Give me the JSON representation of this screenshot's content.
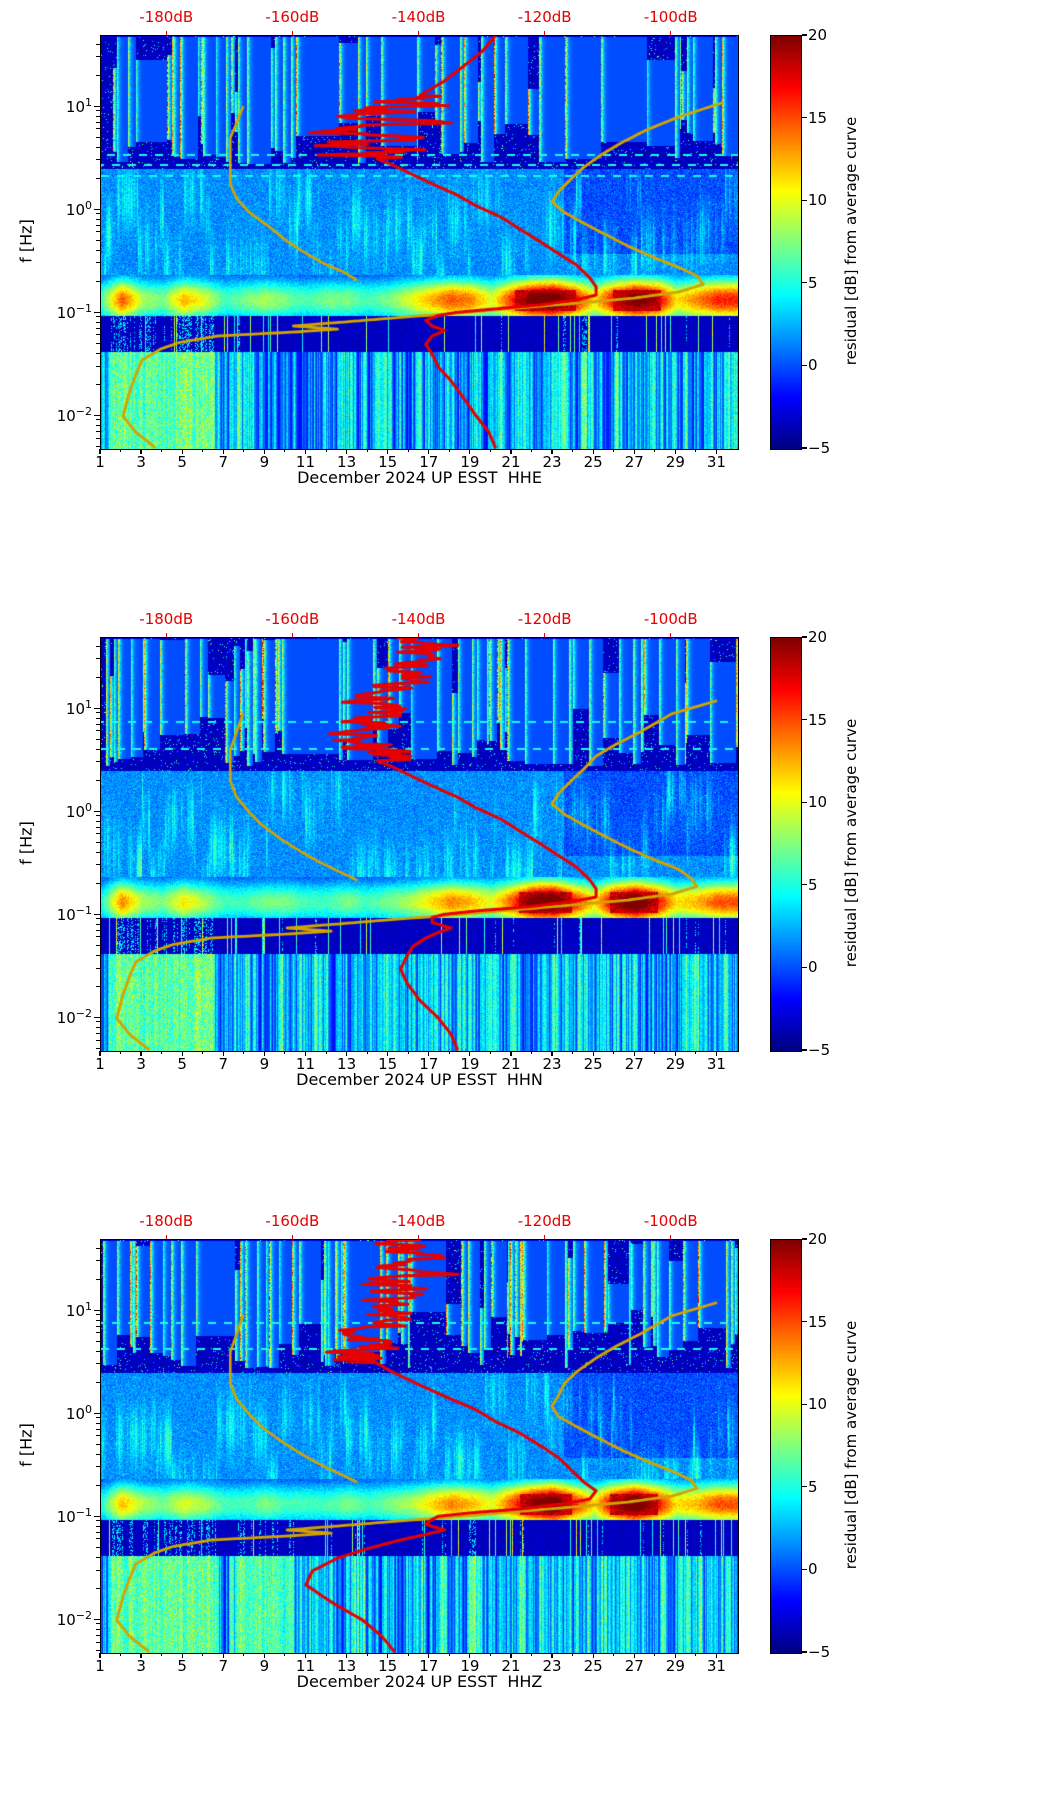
{
  "figure": {
    "background": "#ffffff",
    "y_axis": {
      "label": "f [Hz]",
      "tick_exponents": [
        1,
        0,
        -1,
        -2
      ],
      "range_hz": [
        0.0048,
        49
      ]
    },
    "x_axis": {
      "tick_labels": [
        1,
        3,
        5,
        7,
        9,
        11,
        13,
        15,
        17,
        19,
        21,
        23,
        25,
        27,
        29,
        31
      ],
      "range_days": [
        1,
        32
      ]
    },
    "db_axis": {
      "labels": [
        "-180dB",
        "-160dB",
        "-140dB",
        "-120dB",
        "-100dB"
      ],
      "values": [
        -180,
        -160,
        -140,
        -120,
        -100
      ],
      "range": [
        -190.5,
        -89.5
      ],
      "color": "#e60000"
    },
    "colorbar": {
      "label": "residual [dB] from average curve",
      "tick_values": [
        20,
        15,
        10,
        5,
        0,
        -5
      ],
      "min": -5,
      "max": 20,
      "colormap": "jet"
    },
    "curves": {
      "red_color": "#e60000",
      "yellow_color": "#d2a400"
    }
  },
  "chart_data": [
    {
      "type": "heatmap",
      "title": "December 2024 UP ESST  HHE",
      "channel": "HHE",
      "colormap": "jet",
      "x_range_days": [
        1,
        32
      ],
      "f_range_hz": [
        0.0048,
        49
      ],
      "value_range_db": [
        -5,
        20
      ],
      "seed": 13,
      "microseism_intensity_by_day": [
        6,
        13,
        8,
        7,
        11,
        9,
        6,
        7,
        8,
        7,
        6,
        7,
        7,
        6,
        7,
        9,
        11,
        13,
        12,
        9,
        14,
        18,
        19,
        15,
        10,
        15,
        18,
        16,
        10,
        12,
        14
      ],
      "low_boost_days": [
        [
          1.3,
          6.5
        ]
      ],
      "dashed_lines_hz": [
        2.2,
        2.8,
        3.5
      ],
      "red_jitter": {
        "f_range": [
          3.2,
          13
        ],
        "amp_db": 7
      },
      "red_curve_db_vs_hz": [
        [
          49,
          -128
        ],
        [
          35,
          -130
        ],
        [
          25,
          -133
        ],
        [
          18,
          -136
        ],
        [
          14,
          -139
        ],
        [
          11,
          -142
        ],
        [
          9,
          -144
        ],
        [
          7,
          -146
        ],
        [
          5.5,
          -148
        ],
        [
          4.5,
          -147
        ],
        [
          3.8,
          -149
        ],
        [
          3.2,
          -147
        ],
        [
          2.7,
          -144
        ],
        [
          2.2,
          -141
        ],
        [
          1.8,
          -138
        ],
        [
          1.4,
          -134
        ],
        [
          1.1,
          -131
        ],
        [
          0.85,
          -127
        ],
        [
          0.65,
          -124
        ],
        [
          0.5,
          -121
        ],
        [
          0.38,
          -118
        ],
        [
          0.29,
          -115
        ],
        [
          0.22,
          -113
        ],
        [
          0.18,
          -112
        ],
        [
          0.15,
          -112
        ],
        [
          0.135,
          -115
        ],
        [
          0.12,
          -121
        ],
        [
          0.11,
          -128
        ],
        [
          0.102,
          -134
        ],
        [
          0.095,
          -137
        ],
        [
          0.085,
          -139
        ],
        [
          0.075,
          -138
        ],
        [
          0.068,
          -136
        ],
        [
          0.06,
          -138
        ],
        [
          0.05,
          -139
        ],
        [
          0.04,
          -138
        ],
        [
          0.03,
          -137
        ],
        [
          0.022,
          -135
        ],
        [
          0.015,
          -133
        ],
        [
          0.01,
          -131
        ],
        [
          0.007,
          -129
        ],
        [
          0.005,
          -128
        ]
      ],
      "yellow_curve_db_vs_hz": [
        [
          11,
          -92
        ],
        [
          8,
          -99
        ],
        [
          6,
          -104
        ],
        [
          4.5,
          -108
        ],
        [
          3.5,
          -111
        ],
        [
          2.6,
          -114
        ],
        [
          2,
          -116
        ],
        [
          1.5,
          -118
        ],
        [
          1.2,
          -119
        ],
        [
          0.95,
          -117
        ],
        [
          0.75,
          -114
        ],
        [
          0.6,
          -111
        ],
        [
          0.45,
          -107
        ],
        [
          0.35,
          -103
        ],
        [
          0.28,
          -99
        ],
        [
          0.23,
          -96
        ],
        [
          0.19,
          -95
        ],
        [
          0.16,
          -99
        ],
        [
          0.14,
          -106
        ],
        [
          0.125,
          -115
        ],
        [
          0.11,
          -126
        ],
        [
          0.1,
          -134
        ],
        [
          0.09,
          -144
        ],
        [
          0.082,
          -152
        ],
        [
          0.075,
          -160
        ],
        [
          0.07,
          -153
        ],
        [
          0.066,
          -159
        ],
        [
          0.06,
          -172
        ],
        [
          0.052,
          -178
        ],
        [
          0.045,
          -181
        ],
        [
          0.035,
          -184
        ],
        [
          0.025,
          -185
        ],
        [
          0.017,
          -186
        ],
        [
          0.01,
          -187
        ],
        [
          0.007,
          -185
        ],
        [
          0.005,
          -182
        ]
      ],
      "yellow_secondary_curve_db_vs_hz": [
        [
          10,
          -168
        ],
        [
          7,
          -169
        ],
        [
          5,
          -170
        ],
        [
          3.5,
          -170
        ],
        [
          2.5,
          -170
        ],
        [
          1.8,
          -170
        ],
        [
          1.3,
          -169
        ],
        [
          0.95,
          -167
        ],
        [
          0.7,
          -164
        ],
        [
          0.5,
          -161
        ],
        [
          0.38,
          -158
        ],
        [
          0.3,
          -155
        ],
        [
          0.25,
          -152
        ],
        [
          0.21,
          -150
        ]
      ]
    },
    {
      "type": "heatmap",
      "title": "December 2024 UP ESST  HHN",
      "channel": "HHN",
      "colormap": "jet",
      "x_range_days": [
        1,
        32
      ],
      "f_range_hz": [
        0.0048,
        49
      ],
      "value_range_db": [
        -5,
        20
      ],
      "seed": 47,
      "microseism_intensity_by_day": [
        5,
        12,
        8,
        7,
        10,
        8,
        6,
        6,
        7,
        7,
        6,
        6,
        7,
        6,
        7,
        8,
        10,
        12,
        11,
        9,
        13,
        18,
        19,
        14,
        10,
        16,
        19,
        15,
        10,
        11,
        13
      ],
      "low_boost_days": [
        [
          1.3,
          6.5
        ]
      ],
      "dashed_lines_hz": [
        4.2,
        7.6
      ],
      "red_jitter": {
        "f_range": [
          3.2,
          49
        ],
        "amp_db": 5
      },
      "red_curve_db_vs_hz": [
        [
          49,
          -141
        ],
        [
          40,
          -140
        ],
        [
          30,
          -142
        ],
        [
          22,
          -141
        ],
        [
          16,
          -143
        ],
        [
          12,
          -144
        ],
        [
          9,
          -146
        ],
        [
          7,
          -147
        ],
        [
          5.5,
          -149
        ],
        [
          4.5,
          -148
        ],
        [
          3.8,
          -150
        ],
        [
          3.2,
          -147
        ],
        [
          2.7,
          -144
        ],
        [
          2.2,
          -141
        ],
        [
          1.8,
          -138
        ],
        [
          1.4,
          -134
        ],
        [
          1.1,
          -131
        ],
        [
          0.85,
          -127
        ],
        [
          0.65,
          -124
        ],
        [
          0.5,
          -121
        ],
        [
          0.38,
          -118
        ],
        [
          0.29,
          -115
        ],
        [
          0.22,
          -113
        ],
        [
          0.18,
          -112
        ],
        [
          0.15,
          -112
        ],
        [
          0.135,
          -116
        ],
        [
          0.12,
          -123
        ],
        [
          0.11,
          -131
        ],
        [
          0.102,
          -136
        ],
        [
          0.095,
          -138
        ],
        [
          0.085,
          -138
        ],
        [
          0.075,
          -135
        ],
        [
          0.068,
          -137
        ],
        [
          0.06,
          -139
        ],
        [
          0.05,
          -141
        ],
        [
          0.04,
          -142
        ],
        [
          0.03,
          -143
        ],
        [
          0.022,
          -142
        ],
        [
          0.015,
          -140
        ],
        [
          0.01,
          -137
        ],
        [
          0.007,
          -135
        ],
        [
          0.005,
          -134
        ]
      ],
      "yellow_curve_db_vs_hz": [
        [
          12,
          -93
        ],
        [
          9,
          -100
        ],
        [
          6,
          -105
        ],
        [
          4.5,
          -109
        ],
        [
          3.5,
          -112
        ],
        [
          2.6,
          -114
        ],
        [
          2,
          -116
        ],
        [
          1.5,
          -118
        ],
        [
          1.2,
          -119
        ],
        [
          0.95,
          -117
        ],
        [
          0.75,
          -114
        ],
        [
          0.6,
          -111
        ],
        [
          0.45,
          -107
        ],
        [
          0.35,
          -103
        ],
        [
          0.28,
          -99
        ],
        [
          0.23,
          -97
        ],
        [
          0.19,
          -96
        ],
        [
          0.16,
          -100
        ],
        [
          0.14,
          -107
        ],
        [
          0.125,
          -116
        ],
        [
          0.11,
          -127
        ],
        [
          0.1,
          -135
        ],
        [
          0.09,
          -145
        ],
        [
          0.082,
          -153
        ],
        [
          0.075,
          -161
        ],
        [
          0.07,
          -154
        ],
        [
          0.066,
          -160
        ],
        [
          0.06,
          -173
        ],
        [
          0.052,
          -179
        ],
        [
          0.045,
          -182
        ],
        [
          0.035,
          -185
        ],
        [
          0.025,
          -186
        ],
        [
          0.017,
          -187
        ],
        [
          0.01,
          -188
        ],
        [
          0.007,
          -186
        ],
        [
          0.005,
          -183
        ]
      ],
      "yellow_secondary_curve_db_vs_hz": [
        [
          9,
          -168
        ],
        [
          6,
          -169
        ],
        [
          4,
          -170
        ],
        [
          2.8,
          -170
        ],
        [
          2,
          -170
        ],
        [
          1.4,
          -169
        ],
        [
          1,
          -167
        ],
        [
          0.75,
          -165
        ],
        [
          0.55,
          -162
        ],
        [
          0.42,
          -159
        ],
        [
          0.33,
          -156
        ],
        [
          0.27,
          -153
        ],
        [
          0.22,
          -150
        ]
      ]
    },
    {
      "type": "heatmap",
      "title": "December 2024 UP ESST  HHZ",
      "channel": "HHZ",
      "colormap": "jet",
      "x_range_days": [
        1,
        32
      ],
      "f_range_hz": [
        0.0048,
        49
      ],
      "value_range_db": [
        -5,
        20
      ],
      "seed": 91,
      "microseism_intensity_by_day": [
        5,
        11,
        8,
        7,
        9,
        8,
        6,
        6,
        7,
        6,
        6,
        6,
        7,
        6,
        7,
        8,
        10,
        12,
        11,
        9,
        13,
        17,
        19,
        14,
        10,
        16,
        19,
        15,
        10,
        11,
        13
      ],
      "low_boost_days": [
        [
          1.3,
          6.5
        ],
        [
          7.5,
          10.2
        ]
      ],
      "dashed_lines_hz": [
        4.4,
        7.8
      ],
      "red_jitter": {
        "f_range": [
          3.2,
          49
        ],
        "amp_db": 5
      },
      "red_curve_db_vs_hz": [
        [
          49,
          -140
        ],
        [
          40,
          -140
        ],
        [
          30,
          -141
        ],
        [
          22,
          -141
        ],
        [
          16,
          -142
        ],
        [
          12,
          -144
        ],
        [
          9,
          -146
        ],
        [
          7,
          -147
        ],
        [
          5.5,
          -149
        ],
        [
          4.5,
          -148
        ],
        [
          3.8,
          -150
        ],
        [
          3.2,
          -147
        ],
        [
          2.7,
          -145
        ],
        [
          2.2,
          -142
        ],
        [
          1.8,
          -139
        ],
        [
          1.4,
          -135
        ],
        [
          1.1,
          -131
        ],
        [
          0.85,
          -128
        ],
        [
          0.65,
          -124
        ],
        [
          0.5,
          -121
        ],
        [
          0.38,
          -118
        ],
        [
          0.29,
          -116
        ],
        [
          0.22,
          -114
        ],
        [
          0.18,
          -112
        ],
        [
          0.15,
          -113
        ],
        [
          0.135,
          -117
        ],
        [
          0.12,
          -124
        ],
        [
          0.11,
          -132
        ],
        [
          0.102,
          -137
        ],
        [
          0.095,
          -138
        ],
        [
          0.085,
          -139
        ],
        [
          0.075,
          -136
        ],
        [
          0.068,
          -139
        ],
        [
          0.06,
          -143
        ],
        [
          0.05,
          -148
        ],
        [
          0.04,
          -153
        ],
        [
          0.03,
          -157
        ],
        [
          0.022,
          -158
        ],
        [
          0.015,
          -154
        ],
        [
          0.01,
          -149
        ],
        [
          0.007,
          -146
        ],
        [
          0.005,
          -144
        ]
      ],
      "yellow_curve_db_vs_hz": [
        [
          12,
          -93
        ],
        [
          9,
          -100
        ],
        [
          6,
          -105
        ],
        [
          4.5,
          -109
        ],
        [
          3.5,
          -112
        ],
        [
          2.6,
          -115
        ],
        [
          2,
          -117
        ],
        [
          1.5,
          -118
        ],
        [
          1.2,
          -119
        ],
        [
          0.95,
          -118
        ],
        [
          0.75,
          -115
        ],
        [
          0.6,
          -112
        ],
        [
          0.45,
          -108
        ],
        [
          0.35,
          -104
        ],
        [
          0.28,
          -100
        ],
        [
          0.23,
          -97
        ],
        [
          0.19,
          -96
        ],
        [
          0.16,
          -100
        ],
        [
          0.14,
          -107
        ],
        [
          0.125,
          -116
        ],
        [
          0.11,
          -127
        ],
        [
          0.1,
          -135
        ],
        [
          0.09,
          -145
        ],
        [
          0.082,
          -153
        ],
        [
          0.075,
          -161
        ],
        [
          0.07,
          -154
        ],
        [
          0.066,
          -160
        ],
        [
          0.06,
          -173
        ],
        [
          0.052,
          -179
        ],
        [
          0.045,
          -182
        ],
        [
          0.035,
          -185
        ],
        [
          0.025,
          -186
        ],
        [
          0.017,
          -187
        ],
        [
          0.01,
          -188
        ],
        [
          0.007,
          -186
        ],
        [
          0.005,
          -183
        ]
      ],
      "yellow_secondary_curve_db_vs_hz": [
        [
          9,
          -168
        ],
        [
          6,
          -169
        ],
        [
          4,
          -170
        ],
        [
          2.8,
          -170
        ],
        [
          2,
          -170
        ],
        [
          1.4,
          -169
        ],
        [
          1,
          -167
        ],
        [
          0.75,
          -165
        ],
        [
          0.55,
          -162
        ],
        [
          0.42,
          -159
        ],
        [
          0.33,
          -156
        ],
        [
          0.27,
          -153
        ],
        [
          0.22,
          -150
        ]
      ]
    }
  ]
}
